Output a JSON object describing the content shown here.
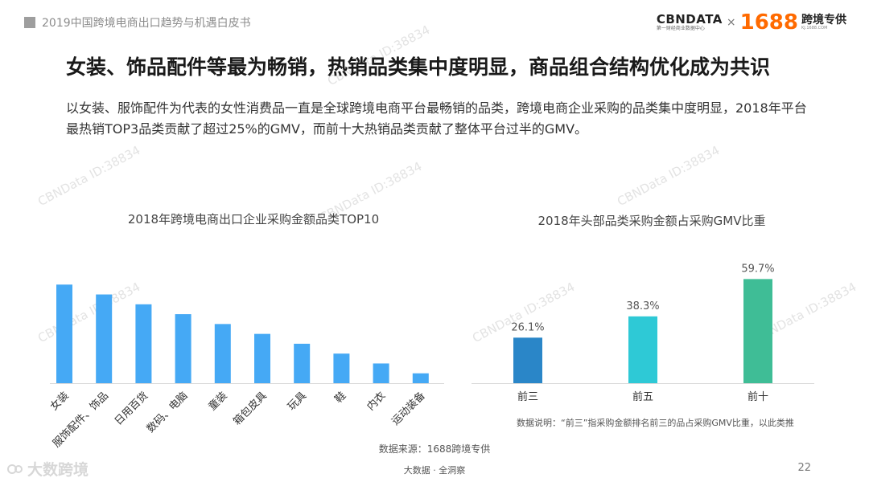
{
  "header": {
    "report_title": "2019中国跨境电商出口趋势与机遇白皮书",
    "brand_cbn": "CBNDATA",
    "brand_cbn_sub": "第一财经商业数据中心",
    "brand_x": "×",
    "brand_1688": "1688",
    "brand_kj": "跨境专供",
    "brand_kj_sub": "KJ.1688.COM"
  },
  "headline": "女装、饰品配件等最为畅销，热销品类集中度明显，商品组合结构优化成为共识",
  "intro": "以女装、服饰配件为代表的女性消费品一直是全球跨境电商平台最畅销的品类，跨境电商企业采购的品类集中度明显，2018年平台最热销TOP3品类贡献了超过25%的GMV，而前十大热销品类贡献了整体平台过半的GMV。",
  "watermark": "CBNData ID:38834",
  "colors": {
    "bar_blue": "#45a9f5",
    "bar_dark_blue": "#2a86c8",
    "bar_cyan": "#2ec9d6",
    "bar_green": "#3fbd96"
  },
  "chart_data": [
    {
      "type": "bar",
      "title": "2018年跨境电商出口企业采购金额品类TOP10",
      "categories": [
        "女装",
        "服饰配件、饰品",
        "日用百货",
        "数码、电脑",
        "童装",
        "箱包皮具",
        "玩具",
        "鞋",
        "内衣",
        "运动装备"
      ],
      "values": [
        10,
        9,
        8,
        7,
        6,
        5,
        4,
        3,
        2,
        1
      ],
      "ylim": [
        0,
        11
      ]
    },
    {
      "type": "bar",
      "title": "2018年头部品类采购金额占采购GMV比重",
      "categories": [
        "前三",
        "前五",
        "前十"
      ],
      "values": [
        26.1,
        38.3,
        59.7
      ],
      "labels": [
        "26.1%",
        "38.3%",
        "59.7%"
      ],
      "ylim": [
        0,
        70
      ]
    }
  ],
  "note": "数据说明：“前三”指采购金额排名前三的品占采购GMV比重，以此类推",
  "source": "数据来源：1688跨境专供",
  "footer": "大数据 · 全洞察",
  "page_number": "22",
  "bottom_logo": "大数跨境"
}
